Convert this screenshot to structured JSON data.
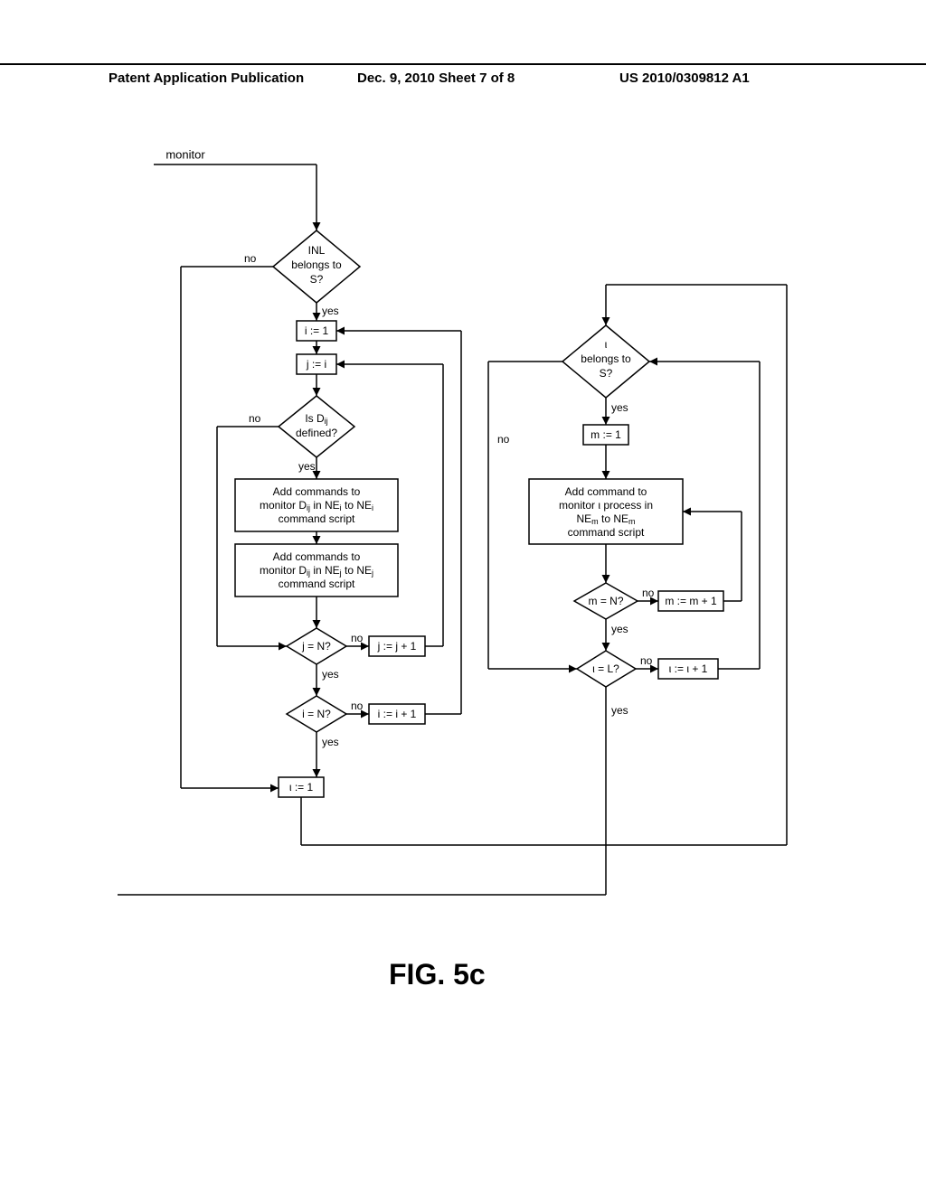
{
  "header": {
    "left": "Patent Application Publication",
    "center": "Dec. 9, 2010  Sheet 7 of 8",
    "right": "US 2010/0309812 A1"
  },
  "caption": "FIG. 5c",
  "entry_label": "monitor",
  "blocks": {
    "d_inl": {
      "line1": "INL",
      "line2": "belongs to",
      "line3": "S?"
    },
    "r_i1": "i := 1",
    "r_ji": "j := i",
    "d_dij": {
      "line1": "Is D",
      "sub1": "ij",
      "line2": "defined?"
    },
    "r_add1": {
      "line1": "Add commands to",
      "line2": "monitor D",
      "sub2": "ij",
      "line2b": " in NE",
      "sub2b": "i",
      "line2c": " to NE",
      "sub2c": "i",
      "line3": "command script"
    },
    "r_add2": {
      "line1": "Add commands to",
      "line2": "monitor D",
      "sub2": "ij",
      "line2b": " in NE",
      "sub2b": "j",
      "line2c": " to NE",
      "sub2c": "j",
      "line3": "command script"
    },
    "d_jn": "j = N?",
    "r_jj1": "j := j + 1",
    "d_in": "i = N?",
    "r_ii1": "i := i + 1",
    "r_l1": "ι := 1",
    "d_ls": {
      "line1": "ι",
      "line2": "belongs to",
      "line3": "S?"
    },
    "r_m1": "m := 1",
    "r_add3": {
      "line1": "Add command to",
      "line2": "monitor ι process in",
      "line3": "NE",
      "sub3": "m",
      "line3b": " to NE",
      "sub3b": "m",
      "line4": "command script"
    },
    "d_mn": "m = N?",
    "r_mm1": "m := m + 1",
    "d_ll": "ι = L?",
    "r_ll1": "ι := ι + 1"
  },
  "labels": {
    "yes": "yes",
    "no": "no"
  },
  "style": {
    "background_color": "#ffffff",
    "stroke_color": "#000000",
    "text_color": "#000000",
    "line_width": 1.5,
    "font_size_node": 13,
    "font_size_label": 12,
    "font_size_caption": 32
  }
}
